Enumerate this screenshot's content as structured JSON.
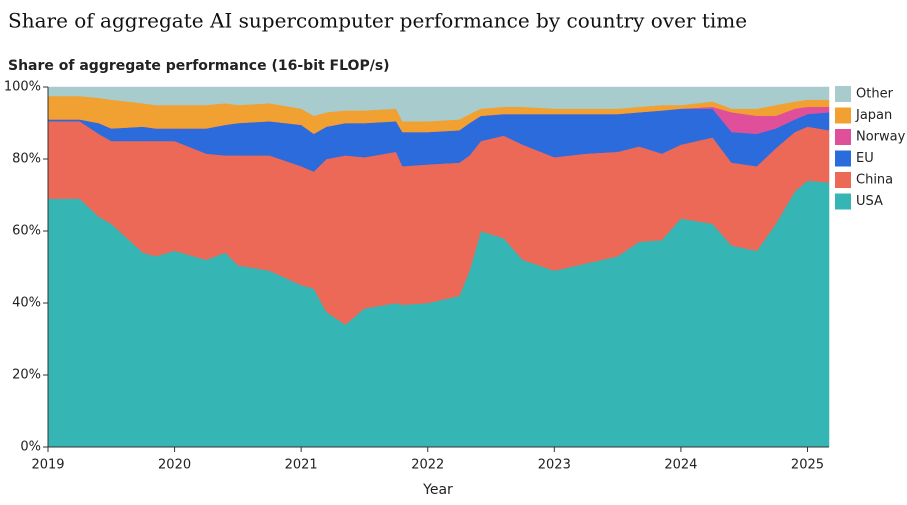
{
  "chart_data": {
    "type": "stacked-area",
    "title": "Share of aggregate AI supercomputer performance by country over time",
    "subtitle": "Share of aggregate performance (16-bit FLOP/s)",
    "x_label": "Year",
    "x": [
      2019,
      2019.25,
      2019.4,
      2019.5,
      2019.75,
      2019.85,
      2020,
      2020.25,
      2020.4,
      2020.5,
      2020.75,
      2021,
      2021.1,
      2021.2,
      2021.35,
      2021.5,
      2021.75,
      2021.8,
      2022,
      2022.25,
      2022.33,
      2022.42,
      2022.6,
      2022.75,
      2023,
      2023.25,
      2023.5,
      2023.67,
      2023.85,
      2024,
      2024.25,
      2024.4,
      2024.6,
      2024.75,
      2024.9,
      2025,
      2025.17
    ],
    "series": [
      {
        "name": "USA",
        "color": "#36b5b5",
        "values": [
          69,
          69,
          64,
          62,
          54,
          53,
          54.5,
          52,
          54,
          50.5,
          49,
          45,
          44,
          37.5,
          34,
          38.5,
          40,
          39.5,
          40,
          42,
          49,
          60,
          58,
          52,
          49,
          51,
          53,
          57,
          57.5,
          63.5,
          62,
          56,
          54.5,
          62,
          71,
          74,
          73.5
        ]
      },
      {
        "name": "China",
        "color": "#ec6957",
        "values": [
          21.5,
          21.5,
          23,
          23,
          31,
          32,
          30.5,
          29.5,
          27,
          30.5,
          32,
          33,
          32.5,
          42.5,
          47,
          42,
          42,
          38.5,
          38.5,
          37,
          32,
          25,
          28.5,
          32,
          31.5,
          30.5,
          29,
          26.5,
          24,
          20.5,
          24,
          23,
          23.5,
          21,
          16.5,
          15,
          14.5
        ]
      },
      {
        "name": "EU",
        "color": "#2c6bdb",
        "values": [
          0.5,
          0.5,
          3,
          3.5,
          4,
          3.5,
          3.5,
          7,
          8.5,
          9,
          9.5,
          11.5,
          10.5,
          9,
          9,
          9.5,
          8.5,
          9.5,
          9,
          9,
          9,
          7,
          6,
          8.5,
          12,
          11,
          10.5,
          9.5,
          12,
          10,
          8,
          8.5,
          9,
          5.5,
          3.5,
          3.5,
          5
        ]
      },
      {
        "name": "Norway",
        "color": "#e0509a",
        "values": [
          0,
          0,
          0,
          0,
          0,
          0,
          0,
          0,
          0,
          0,
          0,
          0,
          0,
          0,
          0,
          0,
          0,
          0,
          0,
          0,
          0,
          0,
          0,
          0,
          0,
          0,
          0,
          0,
          0,
          0,
          0.5,
          5.5,
          5,
          3.5,
          3,
          2,
          1.5
        ]
      },
      {
        "name": "Japan",
        "color": "#f0a132",
        "values": [
          6.5,
          6.5,
          7,
          8,
          6.5,
          6.5,
          6.5,
          6.5,
          6,
          5,
          5,
          4.5,
          5,
          4,
          3.5,
          3.5,
          3.5,
          3,
          3,
          3,
          2.5,
          2,
          2,
          2,
          1.5,
          1.5,
          1.5,
          1.5,
          1.5,
          1,
          1.5,
          1,
          2,
          3,
          2,
          2,
          2
        ]
      },
      {
        "name": "Other",
        "color": "#a8cccd",
        "values": [
          2.5,
          2.5,
          3,
          3.5,
          4.5,
          5,
          5,
          5,
          4.5,
          5,
          4.5,
          6,
          8,
          7,
          6.5,
          6.5,
          6,
          9.5,
          9.5,
          9,
          7.5,
          6,
          5.5,
          5.5,
          6,
          6,
          6,
          5.5,
          5,
          5,
          4,
          6,
          6,
          5,
          4,
          3.5,
          3.5
        ]
      }
    ],
    "xlim": [
      2019,
      2025.17
    ],
    "xticks": [
      2019,
      2020,
      2021,
      2022,
      2023,
      2024,
      2025
    ],
    "ylim": [
      0,
      100
    ],
    "yticks": [
      {
        "value": 0,
        "label": "0%"
      },
      {
        "value": 20,
        "label": "20%"
      },
      {
        "value": 40,
        "label": "40%"
      },
      {
        "value": 60,
        "label": "60%"
      },
      {
        "value": 80,
        "label": "80%"
      },
      {
        "value": 100,
        "label": "100%"
      }
    ],
    "legend": "right"
  }
}
